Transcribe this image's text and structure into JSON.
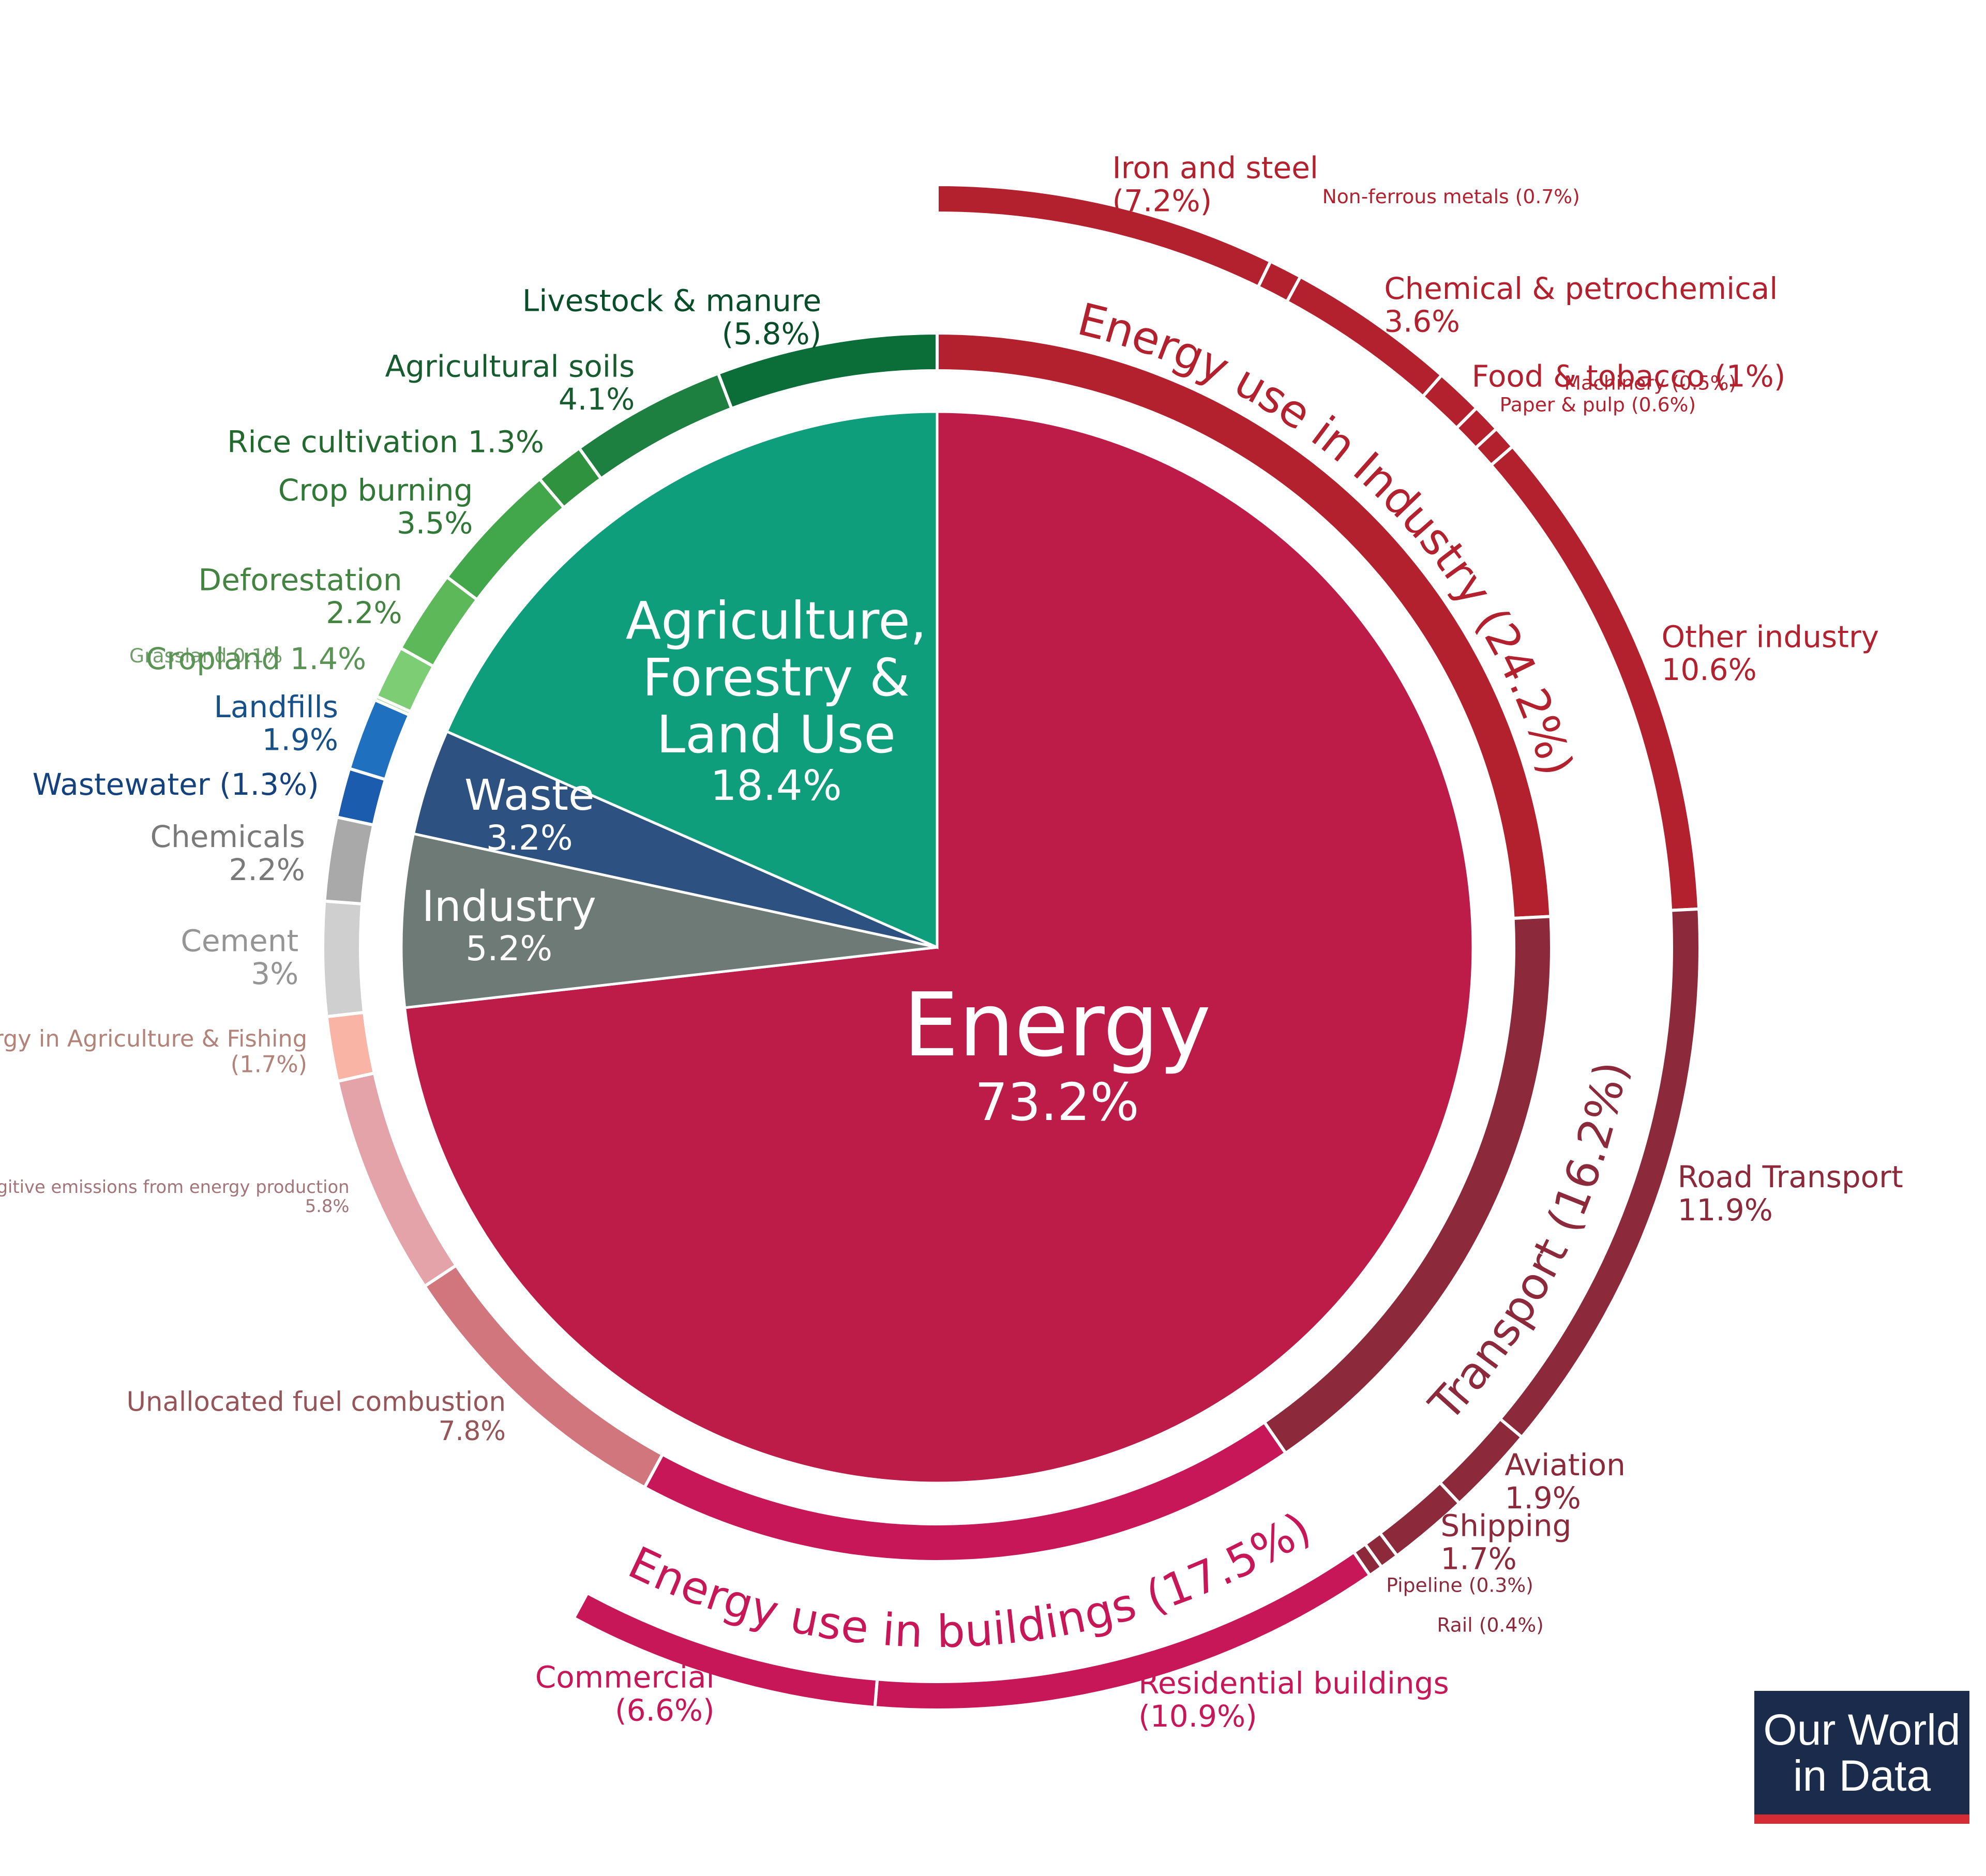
{
  "chart_data": {
    "type": "sunburst",
    "sectors": [
      {
        "name": "Energy",
        "value": 73.2,
        "value_label": "73.2%",
        "color": "#be1c48",
        "children": [
          {
            "name": "Energy use in Industry",
            "value": 24.2,
            "value_label": "(24.2%)",
            "color": "#b3202e",
            "children": [
              {
                "name": "Iron and steel",
                "value": 7.2,
                "value_label": "(7.2%)",
                "color": "#b3202e"
              },
              {
                "name": "Non-ferrous metals",
                "value": 0.7,
                "value_label": "(0.7%)",
                "color": "#b3202e"
              },
              {
                "name": "Chemical & petrochemical",
                "value": 3.6,
                "value_label": "3.6%",
                "color": "#b3202e"
              },
              {
                "name": "Food & tobacco",
                "value": 1,
                "value_label": "(1%)",
                "color": "#b3202e"
              },
              {
                "name": "Paper & pulp",
                "value": 0.6,
                "value_label": "(0.6%)",
                "color": "#b3202e"
              },
              {
                "name": "Machinery",
                "value": 0.5,
                "value_label": "(0.5%)",
                "color": "#b3202e"
              },
              {
                "name": "Other industry",
                "value": 10.6,
                "value_label": "10.6%",
                "color": "#b3202e"
              }
            ]
          },
          {
            "name": "Transport",
            "value": 16.2,
            "value_label": "(16.2%)",
            "color": "#8c2a3b",
            "children": [
              {
                "name": "Road Transport",
                "value": 11.9,
                "value_label": "11.9%",
                "color": "#8c2a3b"
              },
              {
                "name": "Aviation",
                "value": 1.9,
                "value_label": "1.9%",
                "color": "#8c2a3b"
              },
              {
                "name": "Shipping",
                "value": 1.7,
                "value_label": "1.7%",
                "color": "#8c2a3b"
              },
              {
                "name": "Rail",
                "value": 0.4,
                "value_label": "(0.4%)",
                "color": "#8c2a3b"
              },
              {
                "name": "Pipeline",
                "value": 0.3,
                "value_label": "(0.3%)",
                "color": "#8c2a3b"
              }
            ]
          },
          {
            "name": "Energy use in buildings",
            "value": 17.5,
            "value_label": "(17.5%)",
            "color": "#c71758",
            "children": [
              {
                "name": "Residential buildings",
                "value": 10.9,
                "value_label": "(10.9%)",
                "color": "#c71758"
              },
              {
                "name": "Commercial",
                "value": 6.6,
                "value_label": "(6.6%)",
                "color": "#c71758"
              }
            ]
          },
          {
            "name": "Unallocated fuel combustion",
            "value": 7.8,
            "value_label": "7.8%",
            "color": "#d0767c"
          },
          {
            "name": "Fugitive emissions from energy production",
            "value": 5.8,
            "value_label": "5.8%",
            "color": "#e3a3a8"
          },
          {
            "name": "Energy in Agriculture & Fishing",
            "value": 1.7,
            "value_label": "(1.7%)",
            "color": "#f9b4a6"
          }
        ]
      },
      {
        "name": "Industry",
        "value": 5.2,
        "value_label": "5.2%",
        "color": "#6e7a75",
        "children": [
          {
            "name": "Cement",
            "value": 3,
            "value_label": "3%",
            "color": "#cfcfcf"
          },
          {
            "name": "Chemicals",
            "value": 2.2,
            "value_label": "2.2%",
            "color": "#a9a9a9"
          }
        ]
      },
      {
        "name": "Waste",
        "value": 3.2,
        "value_label": "3.2%",
        "color": "#2d5281",
        "children": [
          {
            "name": "Wastewater",
            "value": 1.3,
            "value_label": "(1.3%)",
            "color": "#1c5caf"
          },
          {
            "name": "Landfills",
            "value": 1.9,
            "value_label": "1.9%",
            "color": "#2070c0"
          }
        ]
      },
      {
        "name": "Agriculture, Forestry & Land Use",
        "value": 18.4,
        "value_label": "18.4%",
        "color": "#0e9e7c",
        "children": [
          {
            "name": "Grassland",
            "value": 0.1,
            "value_label": "0.1%",
            "color": "#9edc96"
          },
          {
            "name": "Cropland",
            "value": 1.4,
            "value_label": "1.4%",
            "color": "#7ccd74"
          },
          {
            "name": "Deforestation",
            "value": 2.2,
            "value_label": "2.2%",
            "color": "#5db85a"
          },
          {
            "name": "Crop burning",
            "value": 3.5,
            "value_label": "3.5%",
            "color": "#42a64a"
          },
          {
            "name": "Rice cultivation",
            "value": 1.3,
            "value_label": "1.3%",
            "color": "#2f923e"
          },
          {
            "name": "Agricultural soils",
            "value": 4.1,
            "value_label": "4.1%",
            "color": "#1e8040"
          },
          {
            "name": "Livestock & manure",
            "value": 5.8,
            "value_label": "(5.8%)",
            "color": "#0b6d38"
          }
        ]
      }
    ]
  },
  "logo": [
    "Our World",
    "in Data"
  ]
}
